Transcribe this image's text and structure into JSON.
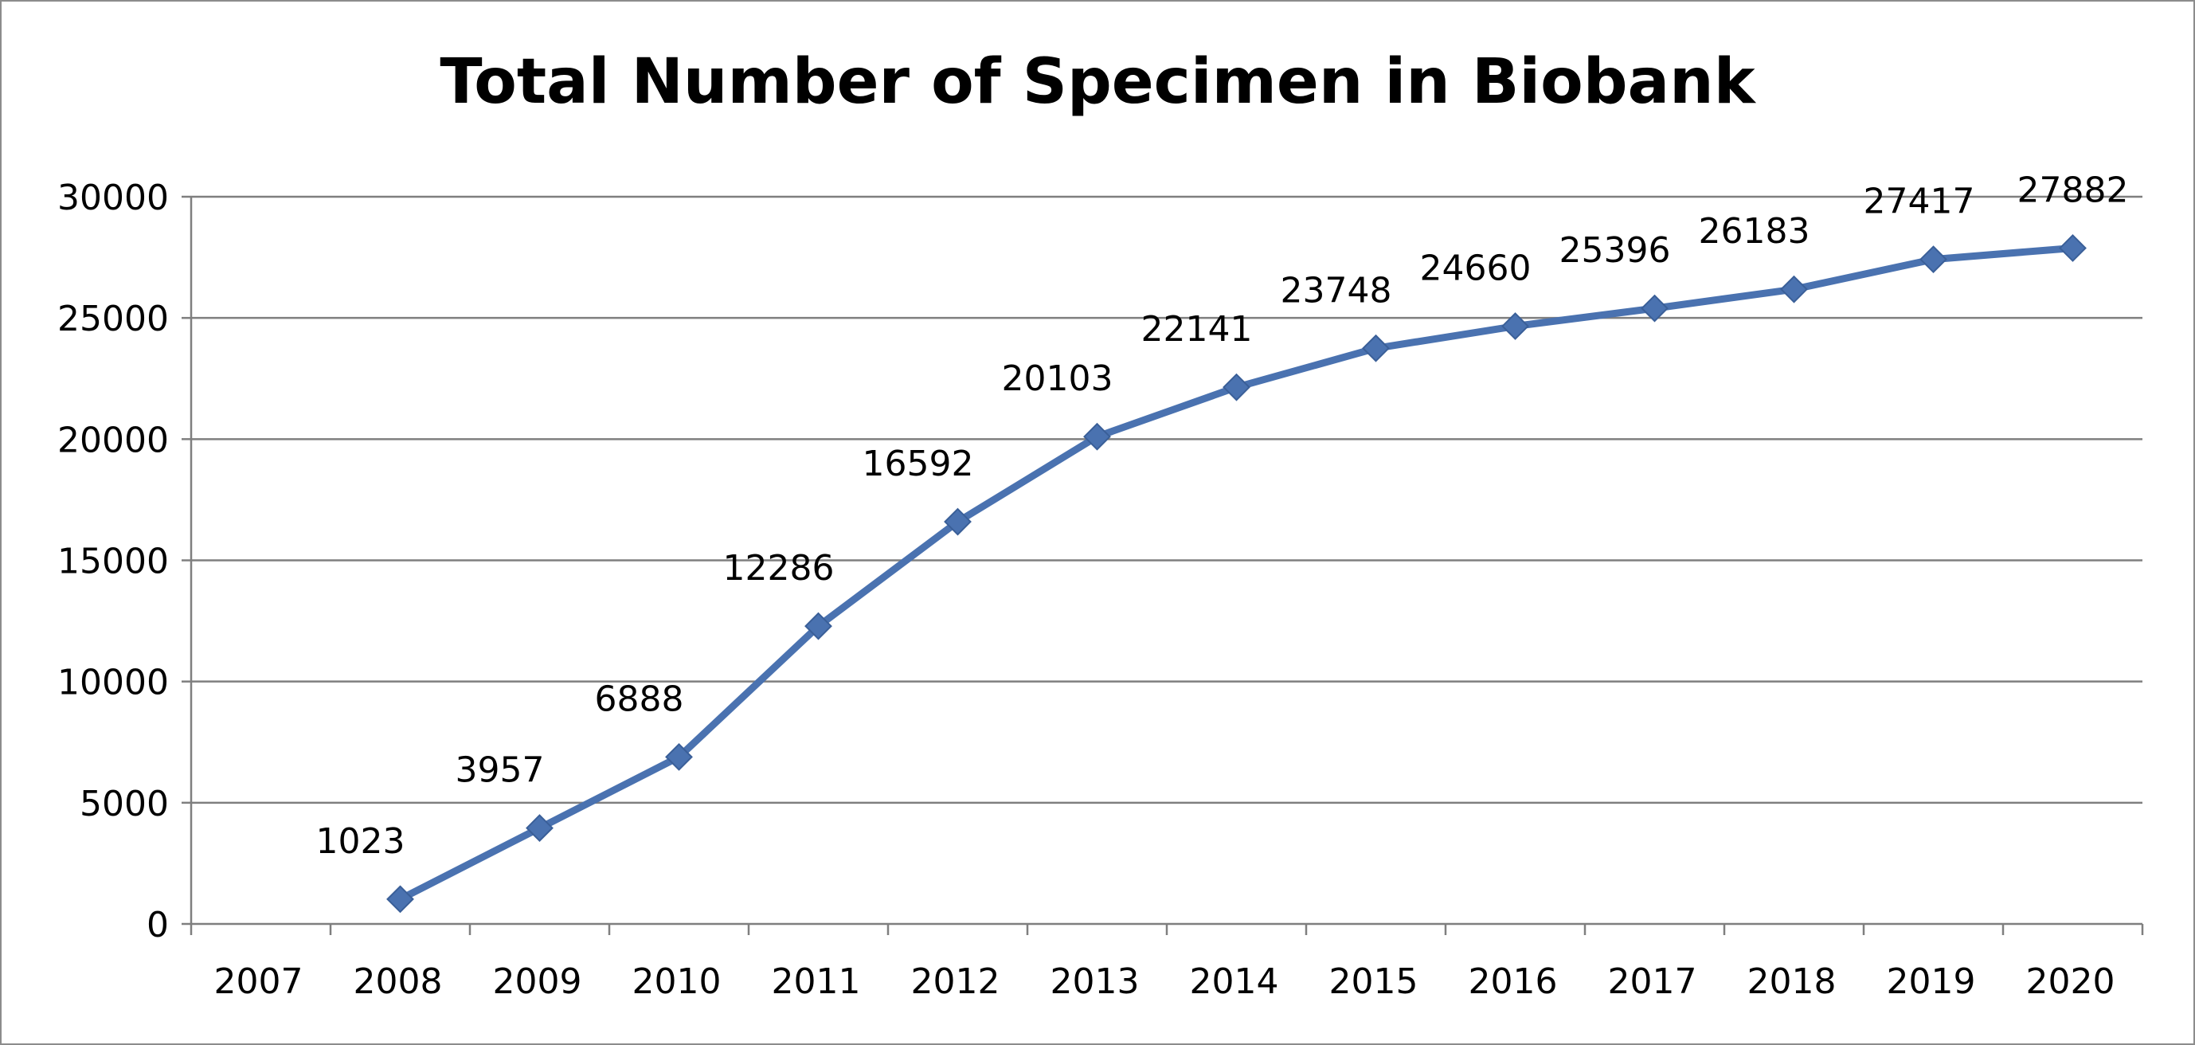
{
  "chart_data": {
    "type": "line",
    "title": "Total Number of Specimen in Biobank",
    "xlabel": "",
    "ylabel": "",
    "categories": [
      "2007",
      "2008",
      "2009",
      "2010",
      "2011",
      "2012",
      "2013",
      "2014",
      "2015",
      "2016",
      "2017",
      "2018",
      "2019",
      "2020"
    ],
    "series": [
      {
        "values": [
          null,
          1023,
          3957,
          6888,
          12286,
          16592,
          20103,
          22141,
          23748,
          24660,
          25396,
          26183,
          27417,
          27882
        ],
        "color": "#4a72b0"
      }
    ],
    "data_labels": [
      "",
      "1023",
      "3957",
      "6888",
      "12286",
      "16592",
      "20103",
      "22141",
      "23748",
      "24660",
      "25396",
      "26183",
      "27417",
      "27882"
    ],
    "y_ticks": [
      "0",
      "5000",
      "10000",
      "15000",
      "20000",
      "25000",
      "30000"
    ],
    "ylim": [
      0,
      30000
    ],
    "grid": true,
    "legend": "none",
    "marker": "diamond"
  }
}
